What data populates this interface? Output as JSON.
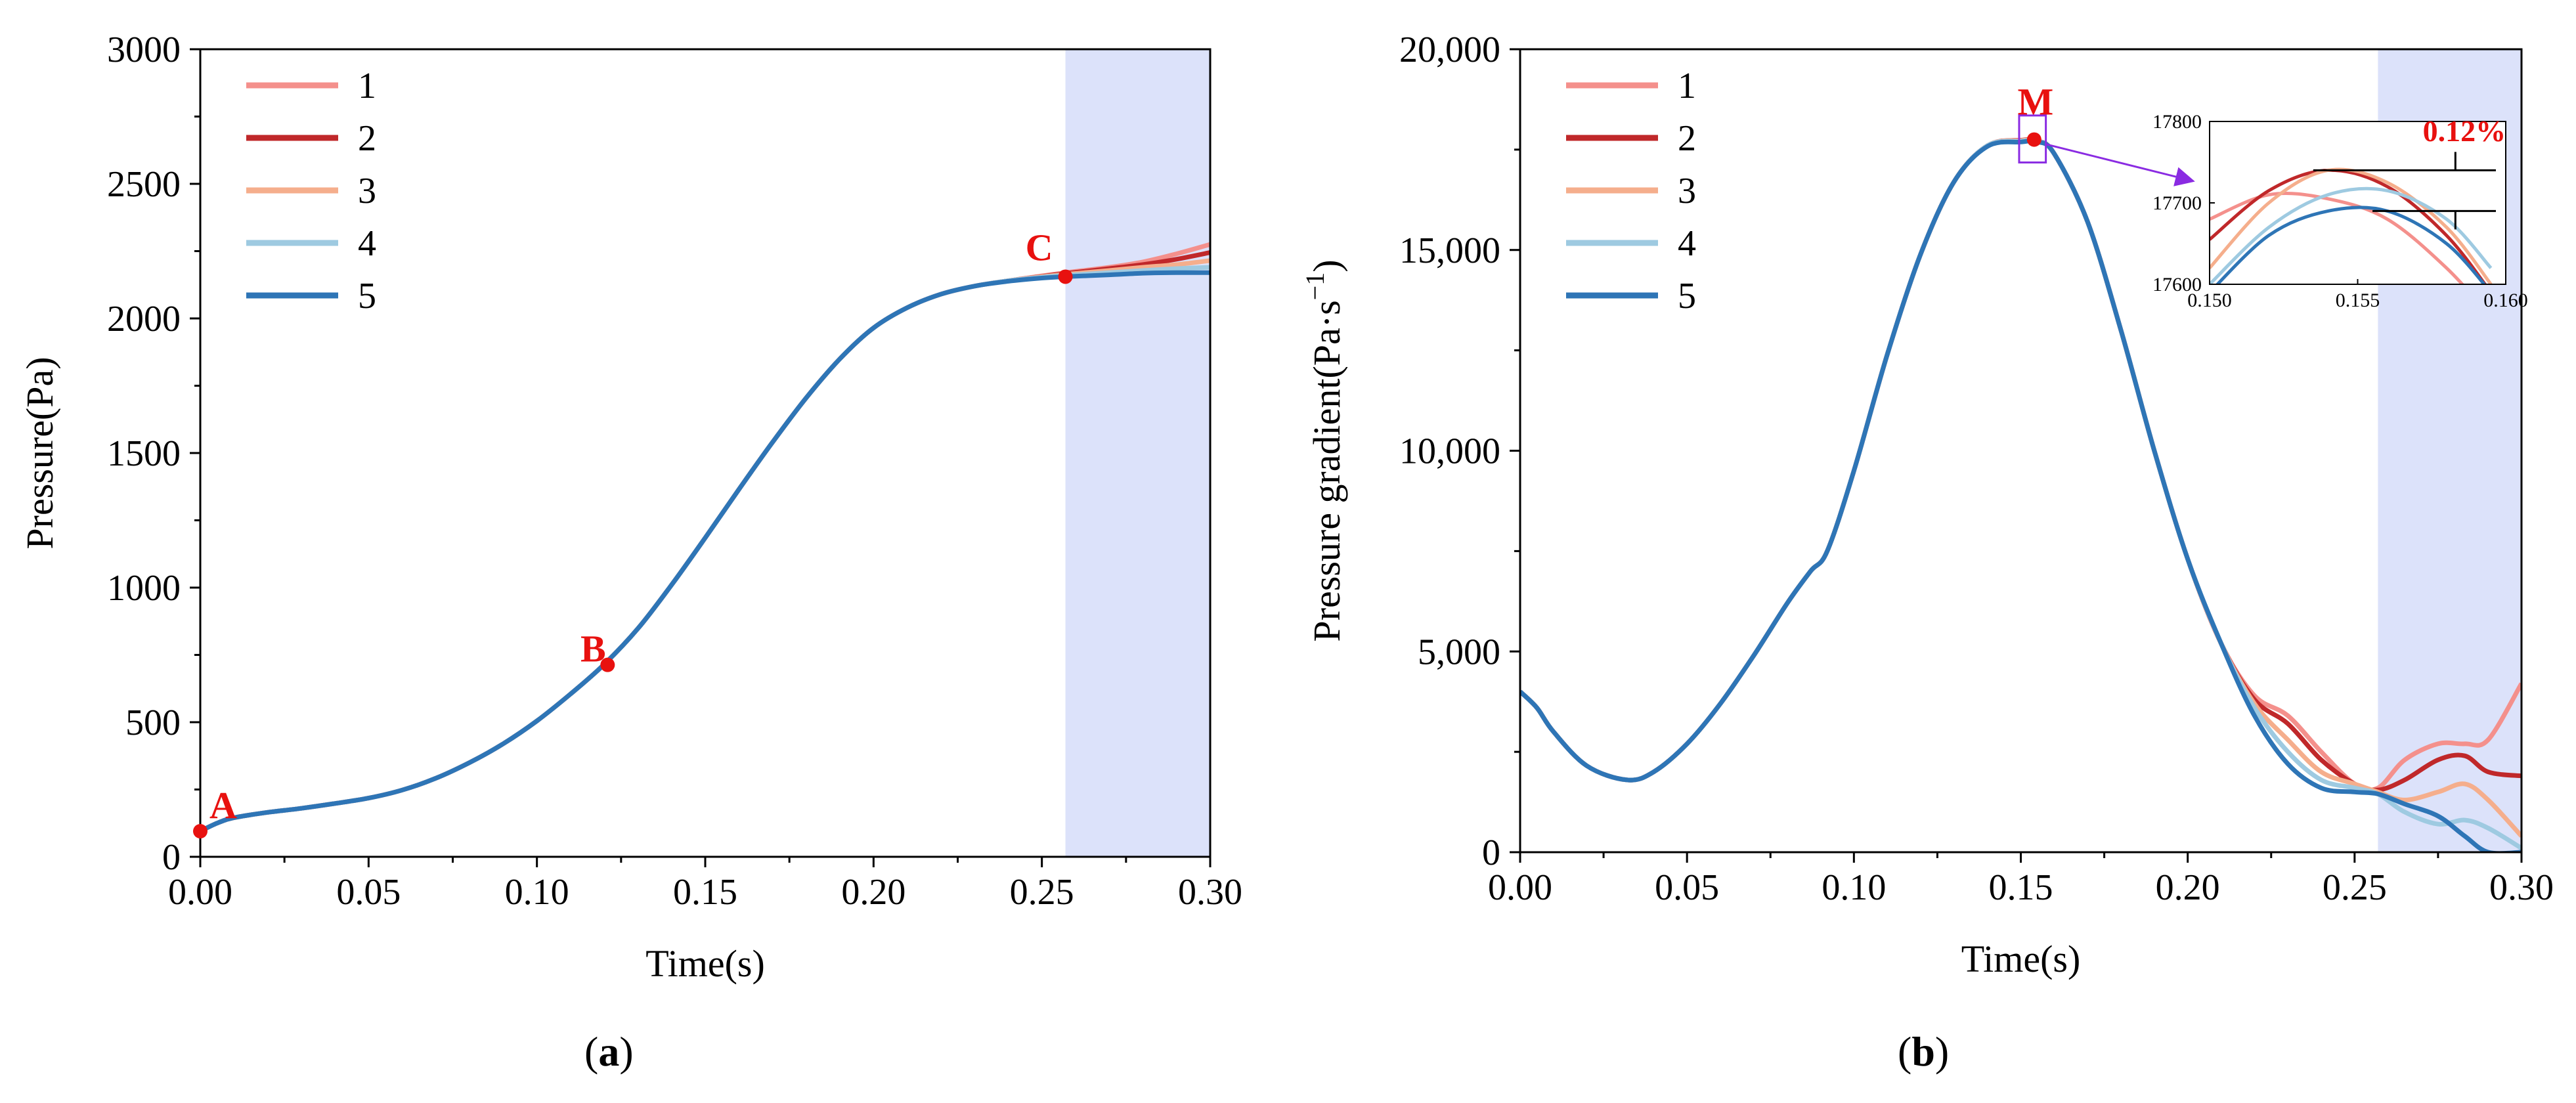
{
  "colors": {
    "series": [
      "#F4908C",
      "#C0282A",
      "#F5AE8C",
      "#9ECAE1",
      "#2E75B6"
    ],
    "highlight": "#DCE2FA",
    "annotation": "#E8110F",
    "zoom_box": "#8A2BE2",
    "axis": "#000000"
  },
  "panels": [
    {
      "label_open": "(",
      "label": "a",
      "label_close": ")"
    },
    {
      "label_open": "(",
      "label": "b",
      "label_close": ")"
    }
  ],
  "chart_data": [
    {
      "type": "line",
      "title": "",
      "xlabel": "Time(s)",
      "ylabel": "Pressure(Pa)",
      "xlim": [
        0,
        0.3
      ],
      "ylim": [
        0,
        3000
      ],
      "xticks": [
        "0.00",
        "0.05",
        "0.10",
        "0.15",
        "0.20",
        "0.25",
        "0.30"
      ],
      "yticks": [
        "0",
        "500",
        "1000",
        "1500",
        "2000",
        "2500",
        "3000"
      ],
      "grid": false,
      "legend": "top-left",
      "shaded_region": [
        0.257,
        0.3
      ],
      "series": [
        {
          "name": "1",
          "x": [
            0,
            0.005,
            0.01,
            0.02,
            0.03,
            0.04,
            0.05,
            0.06,
            0.07,
            0.08,
            0.09,
            0.1,
            0.11,
            0.12,
            0.13,
            0.14,
            0.15,
            0.16,
            0.17,
            0.18,
            0.19,
            0.2,
            0.21,
            0.22,
            0.23,
            0.24,
            0.25,
            0.257,
            0.27,
            0.28,
            0.29,
            0.3
          ],
          "y": [
            95,
            125,
            145,
            165,
            180,
            198,
            218,
            248,
            292,
            350,
            420,
            505,
            605,
            715,
            848,
            1010,
            1185,
            1365,
            1540,
            1705,
            1850,
            1965,
            2040,
            2090,
            2120,
            2140,
            2158,
            2170,
            2190,
            2210,
            2240,
            2275
          ]
        },
        {
          "name": "2",
          "x": [
            0,
            0.005,
            0.01,
            0.02,
            0.03,
            0.04,
            0.05,
            0.06,
            0.07,
            0.08,
            0.09,
            0.1,
            0.11,
            0.12,
            0.13,
            0.14,
            0.15,
            0.16,
            0.17,
            0.18,
            0.19,
            0.2,
            0.21,
            0.22,
            0.23,
            0.24,
            0.25,
            0.257,
            0.27,
            0.28,
            0.29,
            0.3
          ],
          "y": [
            95,
            125,
            145,
            165,
            180,
            198,
            218,
            248,
            292,
            350,
            420,
            505,
            605,
            715,
            848,
            1010,
            1185,
            1365,
            1540,
            1705,
            1850,
            1965,
            2040,
            2090,
            2120,
            2140,
            2156,
            2167,
            2185,
            2200,
            2220,
            2245
          ]
        },
        {
          "name": "3",
          "x": [
            0,
            0.005,
            0.01,
            0.02,
            0.03,
            0.04,
            0.05,
            0.06,
            0.07,
            0.08,
            0.09,
            0.1,
            0.11,
            0.12,
            0.13,
            0.14,
            0.15,
            0.16,
            0.17,
            0.18,
            0.19,
            0.2,
            0.21,
            0.22,
            0.23,
            0.24,
            0.25,
            0.257,
            0.27,
            0.28,
            0.29,
            0.3
          ],
          "y": [
            95,
            125,
            145,
            165,
            180,
            198,
            218,
            248,
            292,
            350,
            420,
            505,
            605,
            715,
            848,
            1010,
            1185,
            1365,
            1540,
            1705,
            1850,
            1965,
            2040,
            2090,
            2120,
            2140,
            2155,
            2164,
            2178,
            2190,
            2200,
            2215
          ]
        },
        {
          "name": "4",
          "x": [
            0,
            0.005,
            0.01,
            0.02,
            0.03,
            0.04,
            0.05,
            0.06,
            0.07,
            0.08,
            0.09,
            0.1,
            0.11,
            0.12,
            0.13,
            0.14,
            0.15,
            0.16,
            0.17,
            0.18,
            0.19,
            0.2,
            0.21,
            0.22,
            0.23,
            0.24,
            0.25,
            0.257,
            0.27,
            0.28,
            0.29,
            0.3
          ],
          "y": [
            95,
            125,
            145,
            165,
            180,
            198,
            218,
            248,
            292,
            350,
            420,
            505,
            605,
            715,
            848,
            1010,
            1185,
            1365,
            1540,
            1705,
            1850,
            1965,
            2040,
            2090,
            2120,
            2140,
            2153,
            2160,
            2170,
            2178,
            2185,
            2190
          ]
        },
        {
          "name": "5",
          "x": [
            0,
            0.005,
            0.01,
            0.02,
            0.03,
            0.04,
            0.05,
            0.06,
            0.07,
            0.08,
            0.09,
            0.1,
            0.11,
            0.12,
            0.13,
            0.14,
            0.15,
            0.16,
            0.17,
            0.18,
            0.19,
            0.2,
            0.21,
            0.22,
            0.23,
            0.24,
            0.25,
            0.257,
            0.27,
            0.28,
            0.29,
            0.3
          ],
          "y": [
            95,
            125,
            145,
            165,
            180,
            198,
            218,
            248,
            292,
            350,
            420,
            505,
            605,
            715,
            848,
            1010,
            1185,
            1365,
            1540,
            1705,
            1850,
            1965,
            2040,
            2090,
            2120,
            2138,
            2150,
            2155,
            2162,
            2168,
            2170,
            2170
          ]
        }
      ],
      "annotations": [
        {
          "text": "A",
          "x": 0.0,
          "y": 95
        },
        {
          "text": "B",
          "x": 0.121,
          "y": 713
        },
        {
          "text": "C",
          "x": 0.257,
          "y": 2155
        }
      ]
    },
    {
      "type": "line",
      "title": "",
      "xlabel": "Time(s)",
      "ylabel": "Pressure gradient(Pa·s",
      "ylabel_sup": "−1",
      "ylabel_close": ")",
      "xlim": [
        0,
        0.3
      ],
      "ylim": [
        0,
        20000
      ],
      "xticks": [
        "0.00",
        "0.05",
        "0.10",
        "0.15",
        "0.20",
        "0.25",
        "0.30"
      ],
      "yticks": [
        "0",
        "5,000",
        "10,000",
        "15,000",
        "20,000"
      ],
      "grid": false,
      "legend": "top-left",
      "shaded_region": [
        0.257,
        0.3
      ],
      "series": [
        {
          "name": "1",
          "x": [
            0,
            0.005,
            0.01,
            0.02,
            0.032,
            0.04,
            0.05,
            0.06,
            0.07,
            0.08,
            0.087,
            0.092,
            0.1,
            0.11,
            0.12,
            0.13,
            0.14,
            0.15,
            0.155,
            0.16,
            0.17,
            0.18,
            0.19,
            0.2,
            0.21,
            0.22,
            0.23,
            0.24,
            0.25,
            0.257,
            0.265,
            0.275,
            0.283,
            0.29,
            0.3
          ],
          "y": [
            4000,
            3600,
            3000,
            2150,
            1800,
            2000,
            2700,
            3700,
            4900,
            6200,
            7000,
            7500,
            9500,
            12400,
            14900,
            16700,
            17600,
            17710,
            17700,
            17400,
            15700,
            13000,
            10000,
            7300,
            5200,
            3900,
            3400,
            2500,
            1700,
            1600,
            2300,
            2700,
            2700,
            2800,
            4200
          ]
        },
        {
          "name": "2",
          "x": [
            0,
            0.005,
            0.01,
            0.02,
            0.032,
            0.04,
            0.05,
            0.06,
            0.07,
            0.08,
            0.087,
            0.092,
            0.1,
            0.11,
            0.12,
            0.13,
            0.14,
            0.15,
            0.155,
            0.16,
            0.17,
            0.18,
            0.19,
            0.2,
            0.21,
            0.22,
            0.23,
            0.24,
            0.25,
            0.257,
            0.265,
            0.275,
            0.283,
            0.29,
            0.3
          ],
          "y": [
            4000,
            3600,
            3000,
            2150,
            1800,
            2000,
            2700,
            3700,
            4900,
            6200,
            7000,
            7500,
            9500,
            12400,
            14900,
            16700,
            17600,
            17735,
            17720,
            17400,
            15700,
            13000,
            10000,
            7300,
            5200,
            3800,
            3200,
            2300,
            1700,
            1550,
            1800,
            2300,
            2400,
            2000,
            1900
          ]
        },
        {
          "name": "3",
          "x": [
            0,
            0.005,
            0.01,
            0.02,
            0.032,
            0.04,
            0.05,
            0.06,
            0.07,
            0.08,
            0.087,
            0.092,
            0.1,
            0.11,
            0.12,
            0.13,
            0.14,
            0.15,
            0.155,
            0.16,
            0.17,
            0.18,
            0.19,
            0.2,
            0.21,
            0.22,
            0.23,
            0.24,
            0.25,
            0.257,
            0.265,
            0.275,
            0.283,
            0.29,
            0.3
          ],
          "y": [
            4000,
            3600,
            3000,
            2150,
            1800,
            2000,
            2700,
            3700,
            4900,
            6200,
            7000,
            7500,
            9500,
            12400,
            14900,
            16700,
            17600,
            17725,
            17715,
            17400,
            15700,
            13000,
            10000,
            7300,
            5200,
            3700,
            2800,
            2000,
            1700,
            1500,
            1300,
            1500,
            1700,
            1300,
            400
          ]
        },
        {
          "name": "4",
          "x": [
            0,
            0.005,
            0.01,
            0.02,
            0.032,
            0.04,
            0.05,
            0.06,
            0.07,
            0.08,
            0.087,
            0.092,
            0.1,
            0.11,
            0.12,
            0.13,
            0.14,
            0.15,
            0.155,
            0.16,
            0.17,
            0.18,
            0.19,
            0.2,
            0.21,
            0.22,
            0.23,
            0.24,
            0.25,
            0.257,
            0.265,
            0.275,
            0.283,
            0.29,
            0.3
          ],
          "y": [
            4000,
            3600,
            3000,
            2150,
            1800,
            2000,
            2700,
            3700,
            4900,
            6200,
            7000,
            7500,
            9500,
            12400,
            14900,
            16700,
            17600,
            17710,
            17715,
            17400,
            15700,
            13000,
            10000,
            7300,
            5200,
            3600,
            2500,
            1800,
            1600,
            1450,
            1000,
            700,
            800,
            600,
            100
          ]
        },
        {
          "name": "5",
          "x": [
            0,
            0.005,
            0.01,
            0.02,
            0.032,
            0.04,
            0.05,
            0.06,
            0.07,
            0.08,
            0.087,
            0.092,
            0.1,
            0.11,
            0.12,
            0.13,
            0.14,
            0.15,
            0.155,
            0.16,
            0.17,
            0.18,
            0.19,
            0.2,
            0.21,
            0.22,
            0.23,
            0.24,
            0.25,
            0.257,
            0.265,
            0.275,
            0.283,
            0.29,
            0.3
          ],
          "y": [
            4000,
            3600,
            3000,
            2150,
            1800,
            2000,
            2700,
            3700,
            4900,
            6200,
            7000,
            7500,
            9500,
            12400,
            14900,
            16700,
            17580,
            17690,
            17695,
            17400,
            15700,
            13000,
            10000,
            7300,
            5200,
            3400,
            2200,
            1600,
            1500,
            1450,
            1200,
            900,
            400,
            0,
            0
          ]
        }
      ],
      "annotations": [
        {
          "text": "M",
          "x": 0.154,
          "y": 17750
        }
      ],
      "inset": {
        "xlim": [
          0.15,
          0.16
        ],
        "ylim": [
          17600,
          17800
        ],
        "xticks": [
          "0.150",
          "0.155",
          "0.160"
        ],
        "yticks": [
          "17600",
          "17700",
          "17800"
        ],
        "annotation": "0.12%",
        "max_line": 17740,
        "min_line": 17690,
        "series": [
          {
            "name": "1",
            "x": [
              0.15,
              0.152,
              0.154,
              0.156,
              0.158,
              0.1595
            ],
            "y": [
              17680,
              17710,
              17705,
              17680,
              17620,
              17560
            ]
          },
          {
            "name": "2",
            "x": [
              0.15,
              0.152,
              0.154,
              0.156,
              0.158,
              0.1595
            ],
            "y": [
              17655,
              17715,
              17740,
              17720,
              17660,
              17590
            ]
          },
          {
            "name": "3",
            "x": [
              0.15,
              0.152,
              0.154,
              0.156,
              0.158,
              0.1595
            ],
            "y": [
              17620,
              17700,
              17740,
              17725,
              17670,
              17600
            ]
          },
          {
            "name": "4",
            "x": [
              0.15,
              0.152,
              0.154,
              0.156,
              0.158,
              0.1595
            ],
            "y": [
              17600,
              17670,
              17710,
              17715,
              17680,
              17620
            ]
          },
          {
            "name": "5",
            "x": [
              0.15,
              0.152,
              0.154,
              0.156,
              0.158,
              0.1595
            ],
            "y": [
              17590,
              17660,
              17690,
              17690,
              17650,
              17590
            ]
          }
        ]
      }
    }
  ]
}
